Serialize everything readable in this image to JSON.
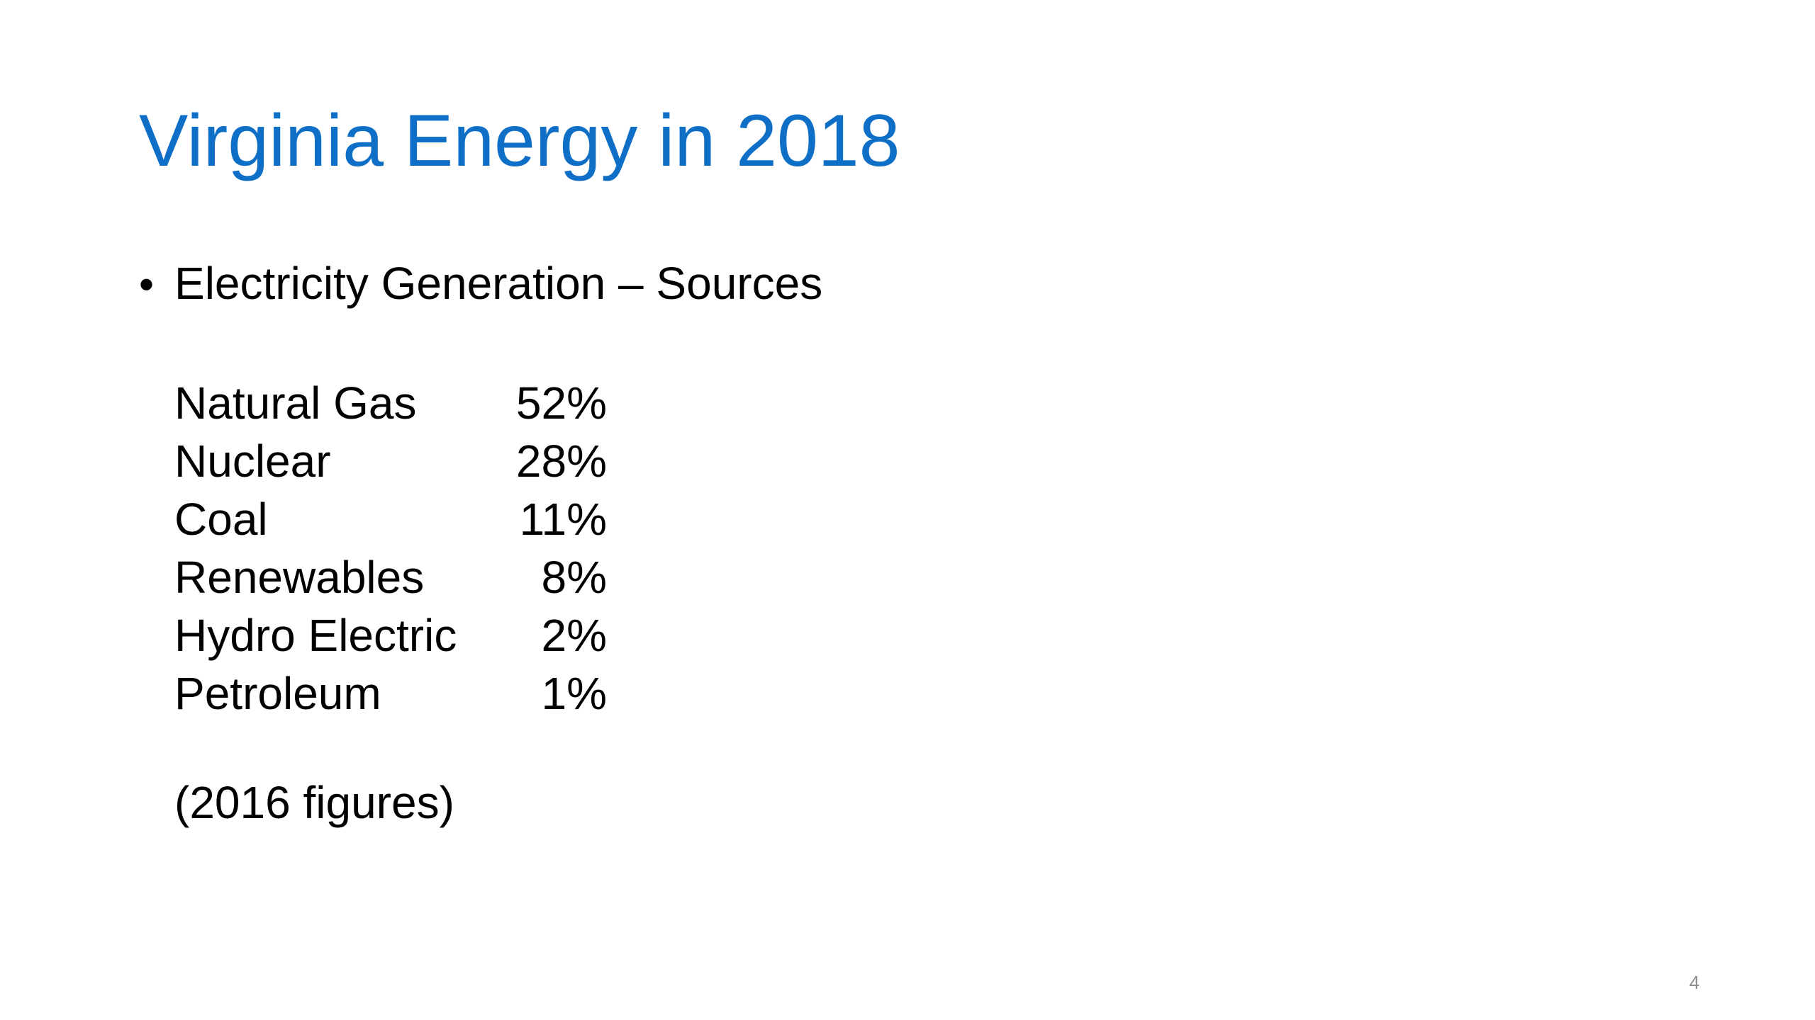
{
  "slide": {
    "title": "Virginia Energy in 2018",
    "bullet": {
      "marker": "•",
      "text": "Electricity Generation – Sources"
    },
    "sources": [
      {
        "label": "Natural Gas",
        "value": "52%"
      },
      {
        "label": "Nuclear",
        "value": "28%"
      },
      {
        "label": "Coal",
        "value": "11%"
      },
      {
        "label": "Renewables",
        "value": "8%"
      },
      {
        "label": "Hydro Electric",
        "value": "2%"
      },
      {
        "label": "Petroleum",
        "value": "1%"
      }
    ],
    "note": "(2016 figures)",
    "page_number": "4"
  },
  "colors": {
    "title": "#0f6fc6",
    "body_text": "#000000",
    "page_number": "#8c8c8c",
    "background": "#ffffff"
  }
}
